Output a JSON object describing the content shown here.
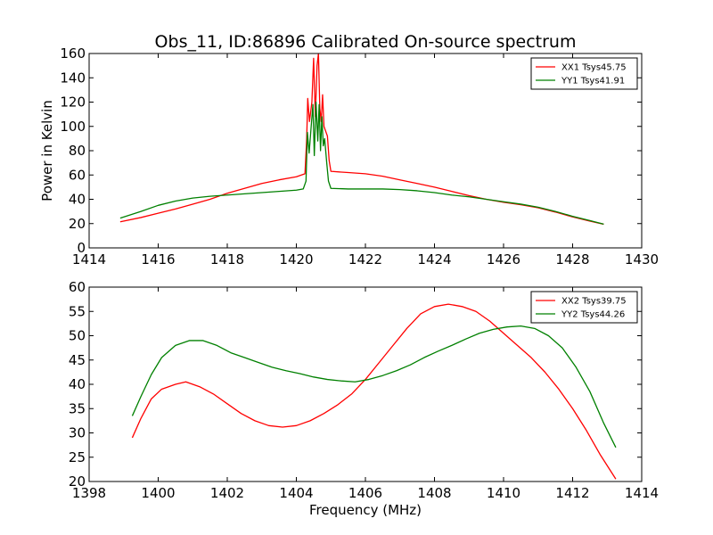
{
  "figure": {
    "title": "Obs_11, ID:86896 Calibrated On-source spectrum",
    "colors": {
      "series1": "#ff0000",
      "series2": "#008000"
    }
  },
  "chart_data": [
    {
      "type": "line",
      "title": "Obs_11, ID:86896 Calibrated On-source spectrum",
      "xlabel": "",
      "ylabel": "Power in Kelvin",
      "xlim": [
        1414,
        1430
      ],
      "ylim": [
        0,
        160
      ],
      "xticks": [
        "1414",
        "1416",
        "1418",
        "1420",
        "1422",
        "1424",
        "1426",
        "1428",
        "1430"
      ],
      "yticks": [
        "0",
        "20",
        "40",
        "60",
        "80",
        "100",
        "120",
        "140",
        "160"
      ],
      "grid": false,
      "legend": "top-right",
      "series": [
        {
          "name": "XX1 Tsys45.75",
          "color": "#ff0000",
          "points": [
            [
              1414.9,
              21.5
            ],
            [
              1415.5,
              25
            ],
            [
              1416.0,
              28.5
            ],
            [
              1416.5,
              32
            ],
            [
              1417.0,
              36
            ],
            [
              1417.5,
              40
            ],
            [
              1418.0,
              45
            ],
            [
              1418.5,
              49
            ],
            [
              1419.0,
              53
            ],
            [
              1419.5,
              56
            ],
            [
              1420.0,
              58.5
            ],
            [
              1420.25,
              61
            ],
            [
              1420.3,
              90
            ],
            [
              1420.33,
              123
            ],
            [
              1420.38,
              104
            ],
            [
              1420.45,
              120
            ],
            [
              1420.5,
              156
            ],
            [
              1420.55,
              108
            ],
            [
              1420.6,
              150
            ],
            [
              1420.64,
              160
            ],
            [
              1420.68,
              115
            ],
            [
              1420.72,
              104
            ],
            [
              1420.76,
              126
            ],
            [
              1420.8,
              100
            ],
            [
              1420.85,
              96
            ],
            [
              1420.9,
              92
            ],
            [
              1420.95,
              72
            ],
            [
              1421.0,
              63
            ],
            [
              1421.5,
              62
            ],
            [
              1422.0,
              61
            ],
            [
              1422.5,
              59
            ],
            [
              1423.0,
              56
            ],
            [
              1423.5,
              53
            ],
            [
              1424.0,
              50
            ],
            [
              1424.5,
              46.5
            ],
            [
              1425.0,
              43
            ],
            [
              1425.5,
              40
            ],
            [
              1426.0,
              37.5
            ],
            [
              1426.5,
              35.5
            ],
            [
              1427.0,
              33
            ],
            [
              1427.5,
              29.5
            ],
            [
              1428.0,
              25.5
            ],
            [
              1428.5,
              22
            ],
            [
              1428.9,
              19.5
            ]
          ]
        },
        {
          "name": "YY1 Tsys41.91",
          "color": "#008000",
          "points": [
            [
              1414.9,
              24.5
            ],
            [
              1415.5,
              30
            ],
            [
              1416.0,
              35
            ],
            [
              1416.5,
              38.5
            ],
            [
              1417.0,
              41
            ],
            [
              1417.5,
              42.5
            ],
            [
              1418.0,
              43.5
            ],
            [
              1418.5,
              44.5
            ],
            [
              1419.0,
              45.5
            ],
            [
              1419.5,
              46.5
            ],
            [
              1420.0,
              47.5
            ],
            [
              1420.2,
              48.5
            ],
            [
              1420.28,
              55
            ],
            [
              1420.32,
              95
            ],
            [
              1420.37,
              78
            ],
            [
              1420.43,
              100
            ],
            [
              1420.48,
              118
            ],
            [
              1420.52,
              76
            ],
            [
              1420.57,
              120
            ],
            [
              1420.62,
              88
            ],
            [
              1420.66,
              118
            ],
            [
              1420.7,
              80
            ],
            [
              1420.74,
              108
            ],
            [
              1420.78,
              84
            ],
            [
              1420.82,
              90
            ],
            [
              1420.88,
              70
            ],
            [
              1420.93,
              55
            ],
            [
              1421.0,
              49
            ],
            [
              1421.5,
              48.5
            ],
            [
              1422.0,
              48.5
            ],
            [
              1422.5,
              48.5
            ],
            [
              1423.0,
              48
            ],
            [
              1423.5,
              47
            ],
            [
              1424.0,
              45.5
            ],
            [
              1424.5,
              43.5
            ],
            [
              1425.0,
              42
            ],
            [
              1425.5,
              40
            ],
            [
              1426.0,
              38
            ],
            [
              1426.5,
              36
            ],
            [
              1427.0,
              33.5
            ],
            [
              1427.5,
              30
            ],
            [
              1428.0,
              26
            ],
            [
              1428.5,
              22.5
            ],
            [
              1428.9,
              19.5
            ]
          ]
        }
      ]
    },
    {
      "type": "line",
      "title": "",
      "xlabel": "Frequency (MHz)",
      "ylabel": "",
      "xlim": [
        1398,
        1414
      ],
      "ylim": [
        20,
        60
      ],
      "xticks": [
        "1398",
        "1400",
        "1402",
        "1404",
        "1406",
        "1408",
        "1410",
        "1412",
        "1414"
      ],
      "yticks": [
        "20",
        "25",
        "30",
        "35",
        "40",
        "45",
        "50",
        "55",
        "60"
      ],
      "grid": false,
      "legend": "top-right",
      "series": [
        {
          "name": "XX2 Tsys39.75",
          "color": "#ff0000",
          "points": [
            [
              1399.25,
              29
            ],
            [
              1399.5,
              33
            ],
            [
              1399.8,
              37
            ],
            [
              1400.1,
              39
            ],
            [
              1400.5,
              40
            ],
            [
              1400.8,
              40.5
            ],
            [
              1401.2,
              39.5
            ],
            [
              1401.6,
              38
            ],
            [
              1402.0,
              36
            ],
            [
              1402.4,
              34
            ],
            [
              1402.8,
              32.5
            ],
            [
              1403.2,
              31.5
            ],
            [
              1403.6,
              31.2
            ],
            [
              1404.0,
              31.5
            ],
            [
              1404.4,
              32.5
            ],
            [
              1404.8,
              34
            ],
            [
              1405.2,
              35.8
            ],
            [
              1405.6,
              38
            ],
            [
              1406.0,
              41
            ],
            [
              1406.4,
              44.5
            ],
            [
              1406.8,
              48
            ],
            [
              1407.2,
              51.5
            ],
            [
              1407.6,
              54.5
            ],
            [
              1408.0,
              56
            ],
            [
              1408.4,
              56.5
            ],
            [
              1408.8,
              56
            ],
            [
              1409.2,
              55
            ],
            [
              1409.6,
              53
            ],
            [
              1410.0,
              50.5
            ],
            [
              1410.4,
              48
            ],
            [
              1410.8,
              45.5
            ],
            [
              1411.2,
              42.5
            ],
            [
              1411.6,
              39
            ],
            [
              1412.0,
              35
            ],
            [
              1412.4,
              30.5
            ],
            [
              1412.8,
              25.5
            ],
            [
              1413.25,
              20.5
            ]
          ]
        },
        {
          "name": "YY2 Tsys44.26",
          "color": "#008000",
          "points": [
            [
              1399.25,
              33.5
            ],
            [
              1399.5,
              37.5
            ],
            [
              1399.8,
              42
            ],
            [
              1400.1,
              45.5
            ],
            [
              1400.5,
              48
            ],
            [
              1400.9,
              49
            ],
            [
              1401.3,
              49
            ],
            [
              1401.7,
              48
            ],
            [
              1402.1,
              46.5
            ],
            [
              1402.5,
              45.5
            ],
            [
              1402.9,
              44.5
            ],
            [
              1403.3,
              43.5
            ],
            [
              1403.7,
              42.8
            ],
            [
              1404.1,
              42.2
            ],
            [
              1404.5,
              41.5
            ],
            [
              1404.9,
              41
            ],
            [
              1405.3,
              40.7
            ],
            [
              1405.7,
              40.5
            ],
            [
              1406.1,
              41
            ],
            [
              1406.5,
              41.8
            ],
            [
              1406.9,
              42.8
            ],
            [
              1407.3,
              44
            ],
            [
              1407.7,
              45.5
            ],
            [
              1408.1,
              46.8
            ],
            [
              1408.5,
              48
            ],
            [
              1408.9,
              49.3
            ],
            [
              1409.3,
              50.5
            ],
            [
              1409.7,
              51.3
            ],
            [
              1410.1,
              51.8
            ],
            [
              1410.5,
              52
            ],
            [
              1410.9,
              51.5
            ],
            [
              1411.3,
              50
            ],
            [
              1411.7,
              47.5
            ],
            [
              1412.1,
              43.5
            ],
            [
              1412.5,
              38.5
            ],
            [
              1412.9,
              32
            ],
            [
              1413.25,
              27
            ]
          ]
        }
      ]
    }
  ]
}
